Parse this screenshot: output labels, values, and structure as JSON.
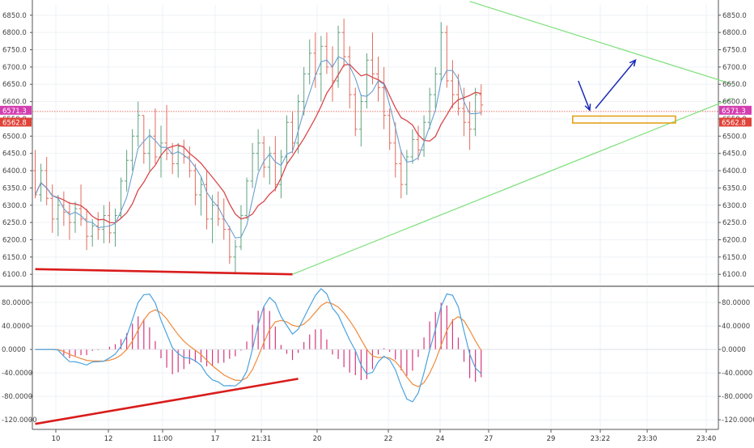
{
  "chart_data": [
    {
      "type": "line",
      "panel": "price",
      "y_ticks": [
        6100,
        6150,
        6200,
        6250,
        6300,
        6350,
        6400,
        6450,
        6500,
        6550,
        6600,
        6650,
        6700,
        6750,
        6800,
        6850
      ],
      "y_tick_labels": [
        "6100.0",
        "6150.0",
        "6200.0",
        "6250.0",
        "6300.0",
        "6350.0",
        "6400.0",
        "6450.0",
        "6500.0",
        "6550.0",
        "6600.0",
        "6650.0",
        "6700.0",
        "6750.0",
        "6800.0",
        "6850.0"
      ],
      "ylim": [
        6070,
        6880
      ],
      "grid": true,
      "price_badges": [
        {
          "label": "6571.3",
          "value": 6571.3,
          "color": "#d43fb0"
        },
        {
          "label": "6562.8",
          "value": 6562.8,
          "color": "#e0433a"
        }
      ],
      "series": [
        {
          "kind": "candles",
          "up_color": "#5fa37f",
          "down_color": "#e26b5c",
          "ohlc": [
            [
              6400,
              6460,
              6320,
              6330
            ],
            [
              6330,
              6420,
              6310,
              6400
            ],
            [
              6400,
              6440,
              6300,
              6320
            ],
            [
              6320,
              6360,
              6220,
              6260
            ],
            [
              6260,
              6330,
              6210,
              6300
            ],
            [
              6300,
              6340,
              6240,
              6280
            ],
            [
              6280,
              6310,
              6200,
              6250
            ],
            [
              6250,
              6310,
              6220,
              6290
            ],
            [
              6290,
              6360,
              6240,
              6260
            ],
            [
              6260,
              6290,
              6170,
              6210
            ],
            [
              6210,
              6260,
              6180,
              6240
            ],
            [
              6240,
              6280,
              6200,
              6230
            ],
            [
              6230,
              6300,
              6190,
              6270
            ],
            [
              6270,
              6310,
              6190,
              6220
            ],
            [
              6220,
              6290,
              6180,
              6270
            ],
            [
              6270,
              6380,
              6260,
              6370
            ],
            [
              6370,
              6460,
              6340,
              6430
            ],
            [
              6430,
              6520,
              6400,
              6500
            ],
            [
              6500,
              6600,
              6470,
              6560
            ],
            [
              6560,
              6560,
              6420,
              6450
            ],
            [
              6450,
              6520,
              6400,
              6500
            ],
            [
              6500,
              6580,
              6420,
              6440
            ],
            [
              6440,
              6530,
              6380,
              6480
            ],
            [
              6480,
              6590,
              6430,
              6450
            ],
            [
              6450,
              6480,
              6390,
              6420
            ],
            [
              6420,
              6480,
              6380,
              6470
            ],
            [
              6470,
              6490,
              6420,
              6440
            ],
            [
              6440,
              6470,
              6380,
              6400
            ],
            [
              6400,
              6420,
              6300,
              6330
            ],
            [
              6330,
              6380,
              6270,
              6360
            ],
            [
              6360,
              6400,
              6230,
              6260
            ],
            [
              6260,
              6330,
              6190,
              6300
            ],
            [
              6300,
              6340,
              6240,
              6260
            ],
            [
              6260,
              6320,
              6200,
              6230
            ],
            [
              6230,
              6240,
              6130,
              6150
            ],
            [
              6150,
              6200,
              6100,
              6180
            ],
            [
              6180,
              6300,
              6170,
              6270
            ],
            [
              6270,
              6380,
              6260,
              6370
            ],
            [
              6370,
              6480,
              6350,
              6450
            ],
            [
              6450,
              6520,
              6400,
              6480
            ],
            [
              6480,
              6500,
              6380,
              6410
            ],
            [
              6410,
              6470,
              6360,
              6450
            ],
            [
              6450,
              6500,
              6340,
              6360
            ],
            [
              6360,
              6460,
              6320,
              6440
            ],
            [
              6440,
              6560,
              6420,
              6540
            ],
            [
              6540,
              6570,
              6450,
              6480
            ],
            [
              6480,
              6620,
              6450,
              6600
            ],
            [
              6600,
              6700,
              6560,
              6680
            ],
            [
              6680,
              6780,
              6650,
              6740
            ],
            [
              6740,
              6800,
              6640,
              6680
            ],
            [
              6680,
              6790,
              6600,
              6760
            ],
            [
              6760,
              6800,
              6680,
              6700
            ],
            [
              6700,
              6760,
              6600,
              6660
            ],
            [
              6660,
              6820,
              6640,
              6800
            ],
            [
              6800,
              6840,
              6700,
              6730
            ],
            [
              6730,
              6760,
              6580,
              6620
            ],
            [
              6620,
              6640,
              6500,
              6520
            ],
            [
              6520,
              6620,
              6470,
              6600
            ],
            [
              6600,
              6740,
              6580,
              6720
            ],
            [
              6720,
              6800,
              6650,
              6680
            ],
            [
              6680,
              6730,
              6600,
              6640
            ],
            [
              6640,
              6700,
              6520,
              6560
            ],
            [
              6560,
              6580,
              6460,
              6480
            ],
            [
              6480,
              6540,
              6380,
              6420
            ],
            [
              6420,
              6460,
              6320,
              6360
            ],
            [
              6360,
              6460,
              6330,
              6440
            ],
            [
              6440,
              6520,
              6420,
              6490
            ],
            [
              6490,
              6530,
              6430,
              6460
            ],
            [
              6460,
              6560,
              6440,
              6540
            ],
            [
              6540,
              6640,
              6520,
              6620
            ],
            [
              6620,
              6700,
              6580,
              6680
            ],
            [
              6680,
              6830,
              6660,
              6800
            ],
            [
              6800,
              6820,
              6640,
              6660
            ],
            [
              6660,
              6720,
              6580,
              6620
            ],
            [
              6620,
              6680,
              6560,
              6580
            ],
            [
              6580,
              6640,
              6500,
              6540
            ],
            [
              6540,
              6600,
              6460,
              6520
            ],
            [
              6520,
              6640,
              6500,
              6620
            ],
            [
              6620,
              6650,
              6560,
              6590
            ]
          ]
        },
        {
          "name": "",
          "color": "#6a9fd0",
          "kind": "line",
          "values": []
        },
        {
          "name": "",
          "color": "#d9474b",
          "kind": "line",
          "values": []
        }
      ],
      "annotations": [
        {
          "kind": "trendline",
          "color": "#d91c1c",
          "from": [
            0,
            6115
          ],
          "to": [
            45,
            6100
          ]
        },
        {
          "kind": "trendline",
          "color": "#7de07a",
          "from": [
            45,
            6100
          ],
          "to": [
            122,
            6610
          ]
        },
        {
          "kind": "trendline",
          "color": "#7de07a",
          "from": [
            76,
            6890
          ],
          "to": [
            122,
            6650
          ]
        },
        {
          "kind": "rectangle",
          "color": "#e3a21a",
          "from": [
            94,
            6558
          ],
          "to": [
            112,
            6538
          ]
        },
        {
          "kind": "arrow",
          "color": "#1b2bb8",
          "from": [
            95,
            6660
          ],
          "to": [
            97,
            6575
          ]
        },
        {
          "kind": "arrow",
          "color": "#1b2bb8",
          "from": [
            98,
            6580
          ],
          "to": [
            105,
            6720
          ]
        }
      ]
    },
    {
      "type": "line",
      "panel": "oscillator",
      "y_ticks": [
        -120,
        -80,
        -40,
        0,
        40,
        80
      ],
      "y_tick_labels": [
        "-120.0000",
        "-80.0000",
        "-40.0000",
        "0.0000",
        "40.0000",
        "80.0000"
      ],
      "ylim": [
        -135,
        105
      ],
      "grid": true,
      "series": [
        {
          "name": "",
          "color": "#4aa3df",
          "kind": "line",
          "values": []
        },
        {
          "name": "",
          "color": "#f08a3c",
          "kind": "line",
          "values": []
        },
        {
          "name": "",
          "color": "#d6367e",
          "kind": "histogram",
          "values": []
        }
      ],
      "annotations": [
        {
          "kind": "trendline",
          "color": "#d91c1c",
          "from": [
            0,
            -127
          ],
          "to": [
            46,
            -50
          ]
        }
      ]
    }
  ],
  "x_axis": {
    "tick_labels": [
      "10",
      "12",
      "11:00",
      "17",
      "21:31",
      "20",
      "22",
      "24",
      "27",
      "29",
      "23:22",
      "23:30",
      "23:40"
    ]
  }
}
